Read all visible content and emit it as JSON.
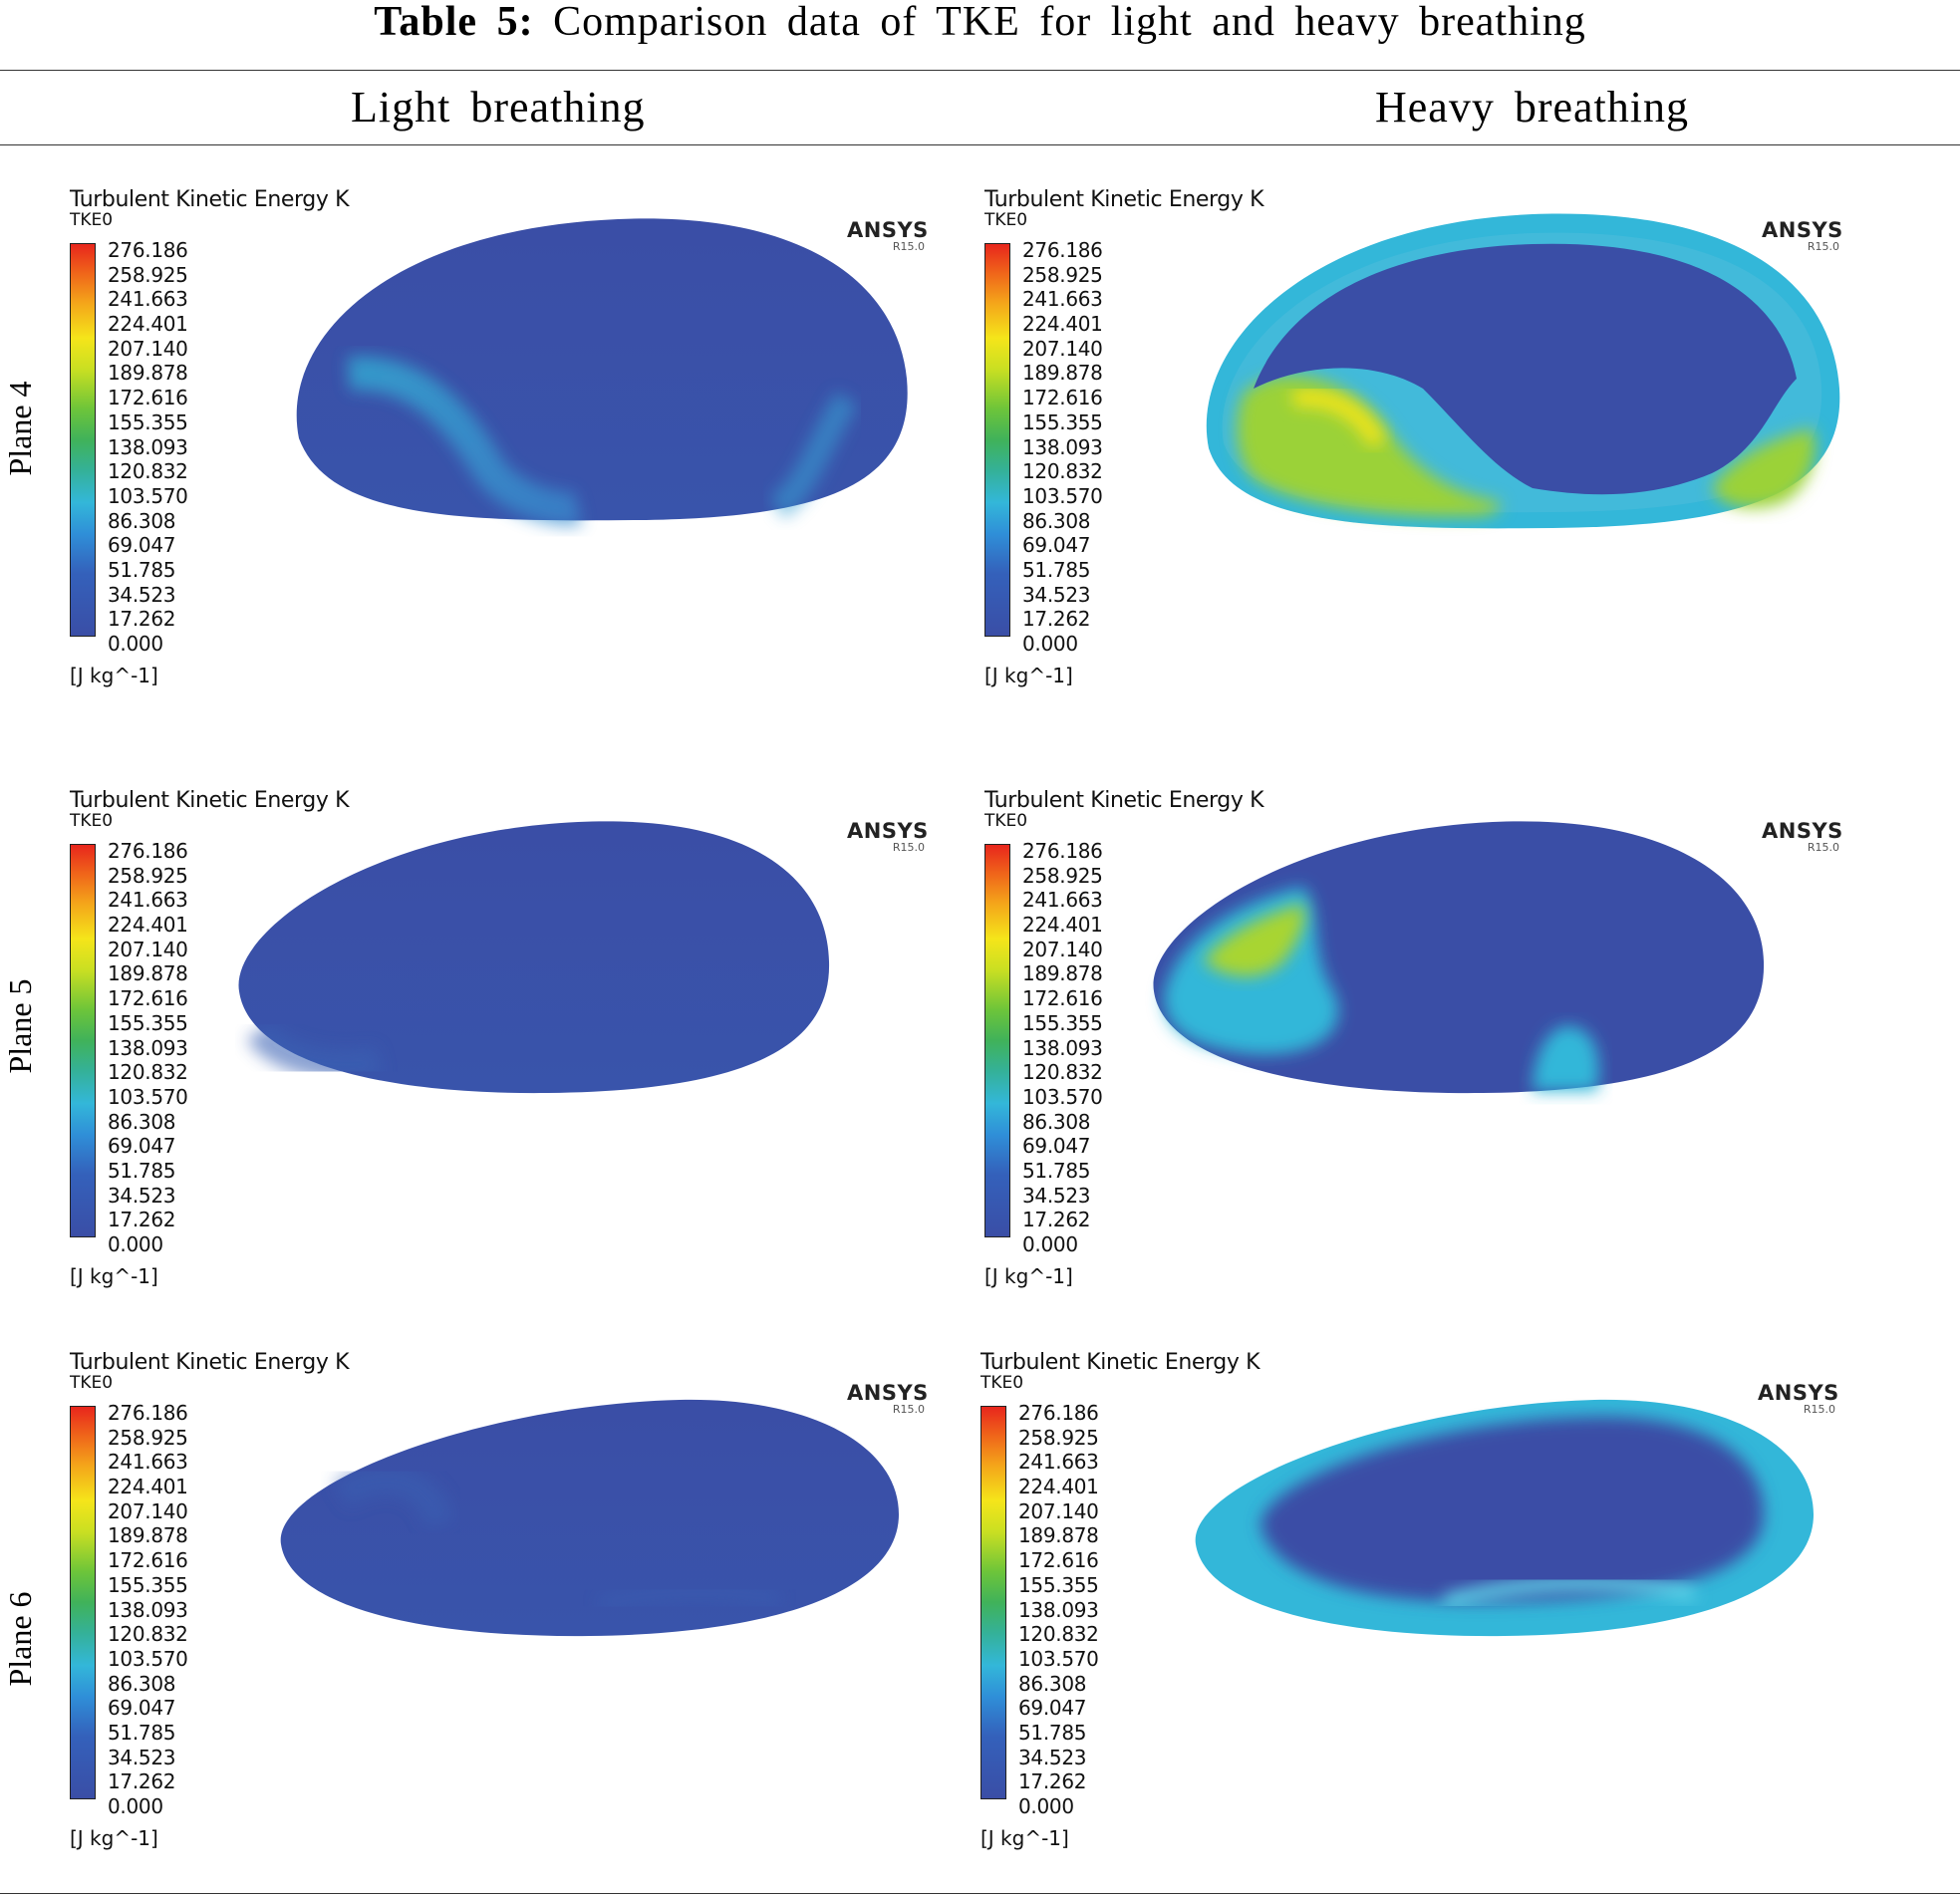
{
  "caption": {
    "label": "Table 5:",
    "text": "Comparison data of TKE for light and heavy breathing"
  },
  "columns": [
    "Light breathing",
    "Heavy breathing"
  ],
  "rows": [
    "Plane 4",
    "Plane 5",
    "Plane 6"
  ],
  "contour": {
    "title": "Turbulent Kinetic Energy K",
    "variable": "TKE0",
    "unit": "[J kg^-1]",
    "logo": "ANSYS",
    "version": "R15.0",
    "legend_values": [
      "276.186",
      "258.925",
      "241.663",
      "224.401",
      "207.140",
      "189.878",
      "172.616",
      "155.355",
      "138.093",
      "120.832",
      "103.570",
      "86.308",
      "69.047",
      "51.785",
      "34.523",
      "17.262",
      "0.000"
    ]
  },
  "colors": {
    "low": "#3a4ea6",
    "mid_low": "#33b7d9",
    "mid": "#6ec539",
    "mid_high": "#f5e51a",
    "high": "#e8261c"
  }
}
